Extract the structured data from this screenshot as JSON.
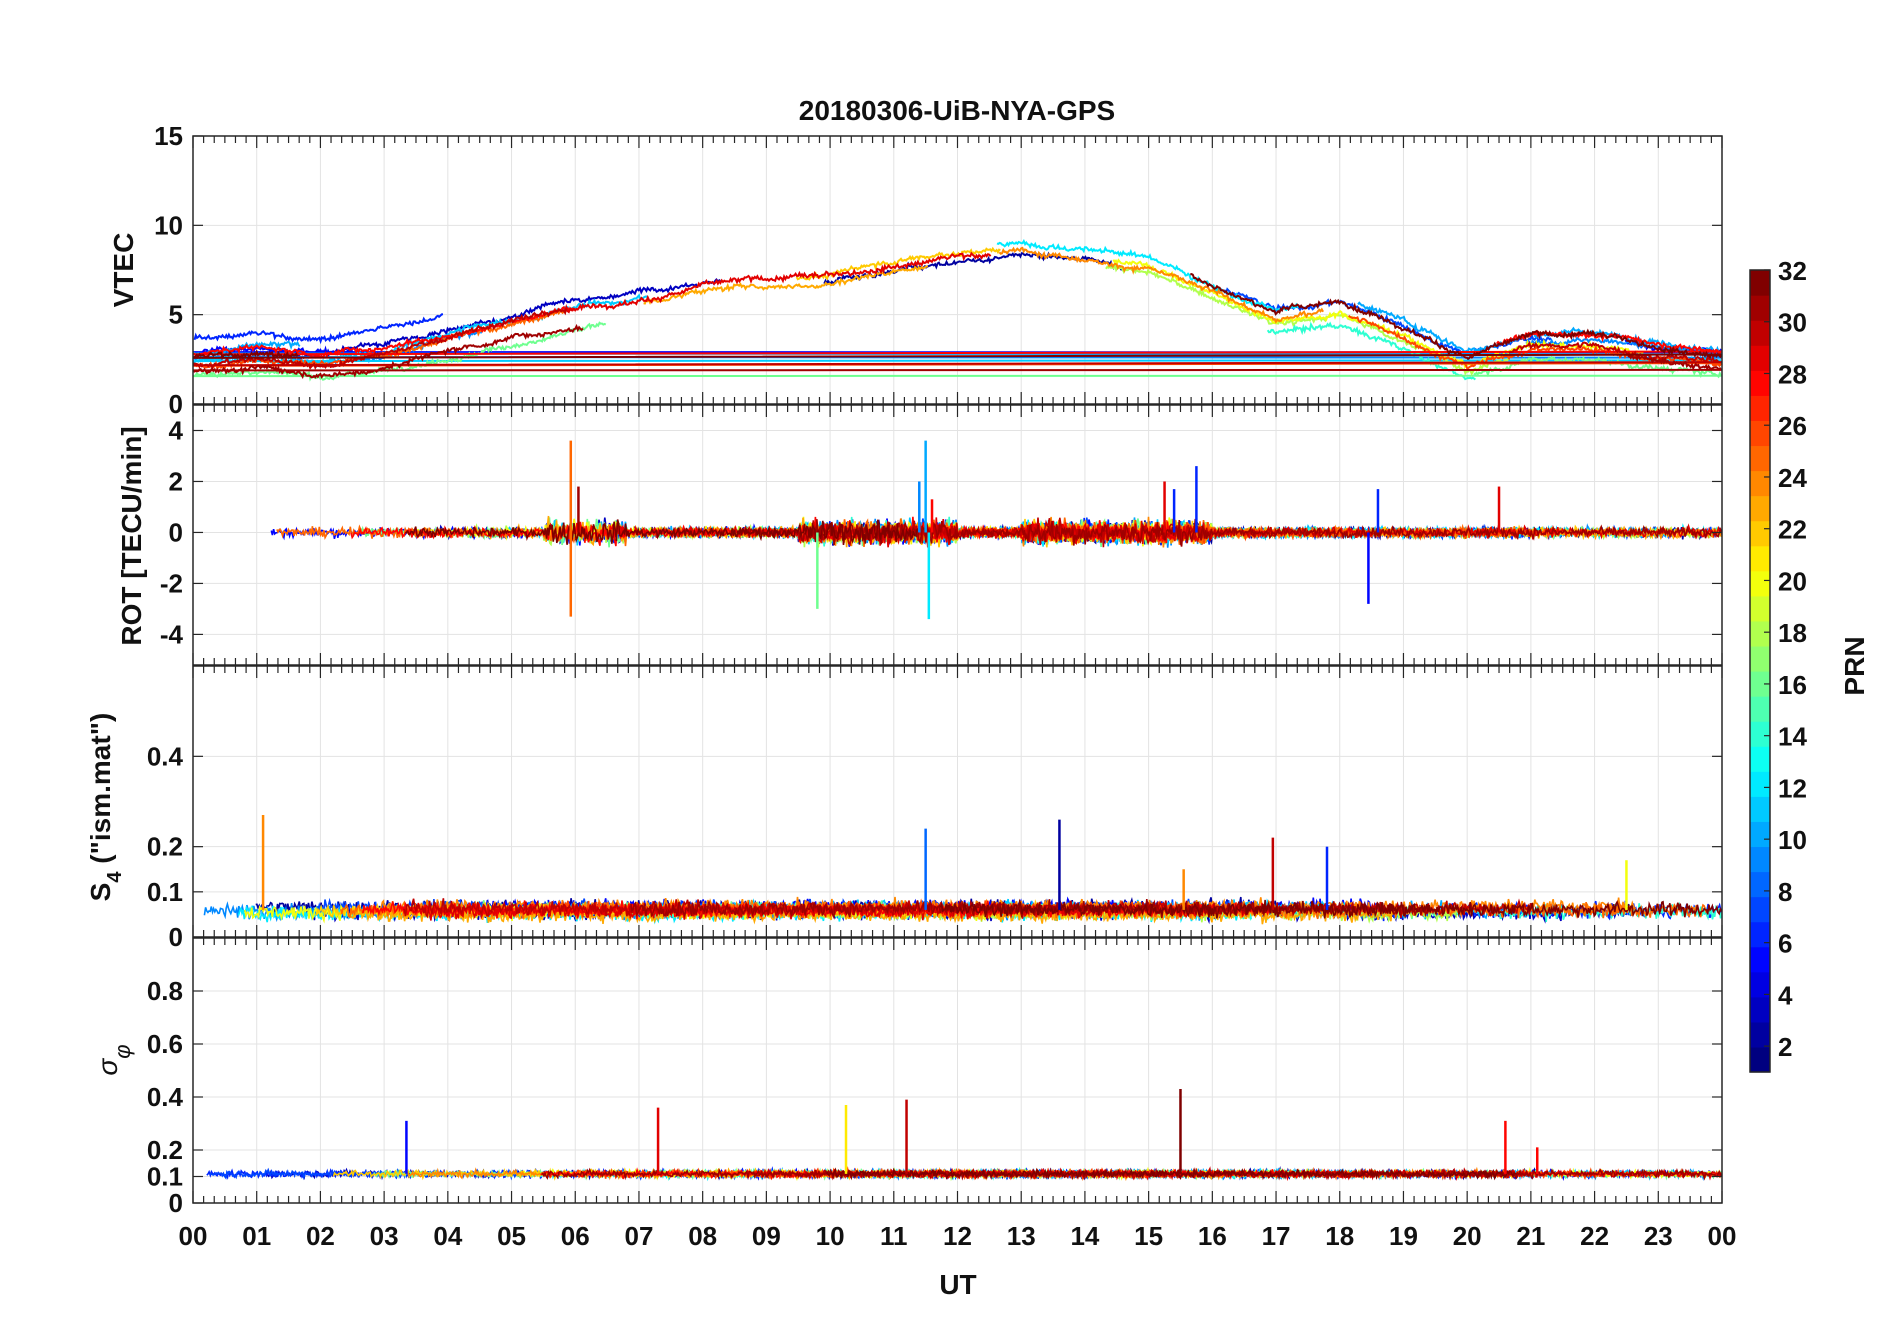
{
  "figure": {
    "title": "20180306-UiB-NYA-GPS",
    "xlabel": "UT",
    "x_tick_labels": [
      "00",
      "01",
      "02",
      "03",
      "04",
      "05",
      "06",
      "07",
      "08",
      "09",
      "10",
      "11",
      "12",
      "13",
      "14",
      "15",
      "16",
      "17",
      "18",
      "19",
      "20",
      "21",
      "22",
      "23",
      "00"
    ]
  },
  "colorbar": {
    "label": "PRN",
    "range": [
      1,
      32
    ],
    "tick_labels": [
      "2",
      "4",
      "6",
      "8",
      "10",
      "12",
      "14",
      "16",
      "18",
      "20",
      "22",
      "24",
      "26",
      "28",
      "30",
      "32"
    ],
    "colormap": "jet"
  },
  "chart_data": [
    {
      "type": "line",
      "name": "vtec",
      "ylabel": "VTEC",
      "xlim": [
        0,
        24
      ],
      "ylim": [
        0,
        15
      ],
      "y_ticks": [
        0,
        5,
        10,
        15
      ],
      "y_tick_labels": [
        "0",
        "5",
        "10",
        "15"
      ],
      "grid": true,
      "series_by_prn_color": true,
      "envelope": {
        "x": [
          0,
          1,
          2,
          3,
          4,
          5,
          6,
          7,
          8,
          9,
          10,
          11,
          12,
          13,
          14,
          15,
          16,
          17,
          18,
          19,
          20,
          21,
          22,
          23,
          24
        ],
        "y": [
          2.5,
          2.8,
          2.5,
          3.0,
          4.0,
          4.8,
          5.5,
          6.0,
          6.8,
          7.0,
          7.2,
          8.0,
          8.5,
          8.8,
          8.5,
          8.0,
          6.5,
          5.0,
          5.5,
          4.2,
          2.5,
          3.5,
          3.5,
          3.0,
          2.6
        ]
      }
    },
    {
      "type": "line",
      "name": "rot",
      "ylabel": "ROT [TECU/min]",
      "xlim": [
        0,
        24
      ],
      "ylim": [
        -5.2,
        5
      ],
      "y_ticks": [
        -4,
        -2,
        0,
        2,
        4
      ],
      "y_tick_labels": [
        "-4",
        "-2",
        "0",
        "2",
        "4"
      ],
      "grid": true,
      "series_by_prn_color": true,
      "spikes": [
        {
          "x": 5.93,
          "y": 3.6,
          "prn": 25
        },
        {
          "x": 5.93,
          "y": -3.3,
          "prn": 25
        },
        {
          "x": 6.05,
          "y": 1.8,
          "prn": 31
        },
        {
          "x": 9.8,
          "y": -3.0,
          "prn": 16
        },
        {
          "x": 11.5,
          "y": 3.6,
          "prn": 10
        },
        {
          "x": 11.55,
          "y": -3.4,
          "prn": 12
        },
        {
          "x": 11.4,
          "y": 2.0,
          "prn": 9
        },
        {
          "x": 11.6,
          "y": 1.3,
          "prn": 28
        },
        {
          "x": 15.25,
          "y": 2.0,
          "prn": 29
        },
        {
          "x": 15.4,
          "y": 1.7,
          "prn": 6
        },
        {
          "x": 15.75,
          "y": 2.6,
          "prn": 6
        },
        {
          "x": 18.45,
          "y": -2.8,
          "prn": 5
        },
        {
          "x": 18.6,
          "y": 1.7,
          "prn": 6
        },
        {
          "x": 20.5,
          "y": 1.8,
          "prn": 29
        }
      ]
    },
    {
      "type": "line",
      "name": "s4",
      "ylabel_parts": [
        "S",
        "4",
        " (\"ism.mat\")"
      ],
      "xlim": [
        0,
        24
      ],
      "ylim": [
        0,
        0.6
      ],
      "y_ticks": [
        0,
        0.1,
        0.2,
        0.4
      ],
      "y_tick_labels": [
        "0",
        "0.1",
        "0.2",
        "0.4"
      ],
      "grid": true,
      "series_by_prn_color": true,
      "spikes": [
        {
          "x": 1.1,
          "y": 0.27,
          "prn": 24
        },
        {
          "x": 11.5,
          "y": 0.24,
          "prn": 8
        },
        {
          "x": 13.6,
          "y": 0.26,
          "prn": 2
        },
        {
          "x": 16.95,
          "y": 0.22,
          "prn": 30
        },
        {
          "x": 17.8,
          "y": 0.2,
          "prn": 6
        },
        {
          "x": 22.5,
          "y": 0.17,
          "prn": 20
        },
        {
          "x": 15.55,
          "y": 0.15,
          "prn": 24
        }
      ]
    },
    {
      "type": "line",
      "name": "sigma_phi",
      "ylabel_parts": [
        "σ",
        "φ"
      ],
      "xlim": [
        0,
        24
      ],
      "ylim": [
        0,
        1
      ],
      "y_ticks": [
        0,
        0.1,
        0.2,
        0.4,
        0.6,
        0.8
      ],
      "y_tick_labels": [
        "0",
        "0.1",
        "0.2",
        "0.4",
        "0.6",
        "0.8"
      ],
      "grid": true,
      "series_by_prn_color": true,
      "spikes": [
        {
          "x": 3.35,
          "y": 0.31,
          "prn": 5
        },
        {
          "x": 7.3,
          "y": 0.36,
          "prn": 29
        },
        {
          "x": 10.25,
          "y": 0.37,
          "prn": 21
        },
        {
          "x": 11.2,
          "y": 0.39,
          "prn": 30
        },
        {
          "x": 15.5,
          "y": 0.43,
          "prn": 32
        },
        {
          "x": 20.6,
          "y": 0.31,
          "prn": 28
        },
        {
          "x": 21.1,
          "y": 0.21,
          "prn": 28
        }
      ]
    }
  ]
}
